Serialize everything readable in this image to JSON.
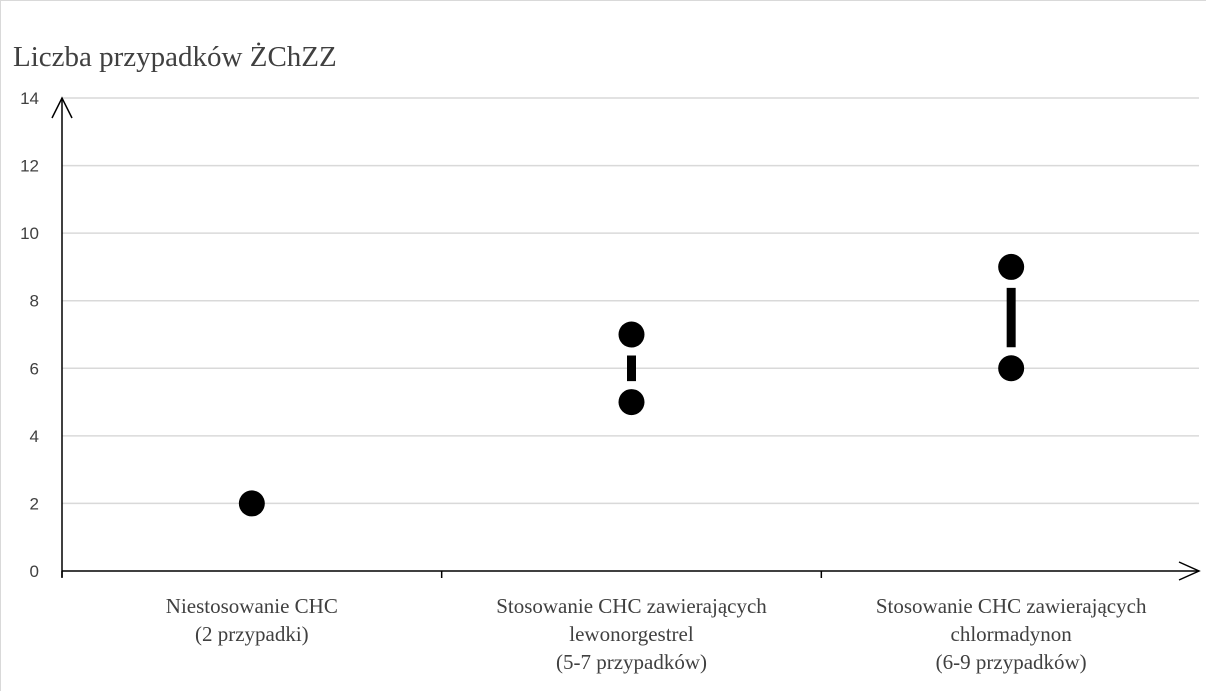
{
  "chart_data": {
    "type": "scatter",
    "title": "Liczba przypadków ŻChZZ",
    "xlabel": "",
    "ylabel": "",
    "ylim": [
      0,
      14
    ],
    "yticks": [
      0,
      2,
      4,
      6,
      8,
      10,
      12,
      14
    ],
    "grid": true,
    "legend": "none",
    "categories": [
      [
        "Niestosowanie CHC",
        "(2 przypadki)"
      ],
      [
        "Stosowanie CHC zawierających",
        "lewonorgestrel",
        "(5-7 przypadków)"
      ],
      [
        "Stosowanie CHC zawierających",
        "chlormadynon",
        "(6-9 przypadków)"
      ]
    ],
    "ranges": [
      {
        "low": 2,
        "high": 2
      },
      {
        "low": 5,
        "high": 7
      },
      {
        "low": 6,
        "high": 9
      }
    ],
    "colors": {
      "marker": "#000000",
      "grid": "#d9d9d9",
      "axis": "#000000",
      "text": "#404040"
    }
  }
}
